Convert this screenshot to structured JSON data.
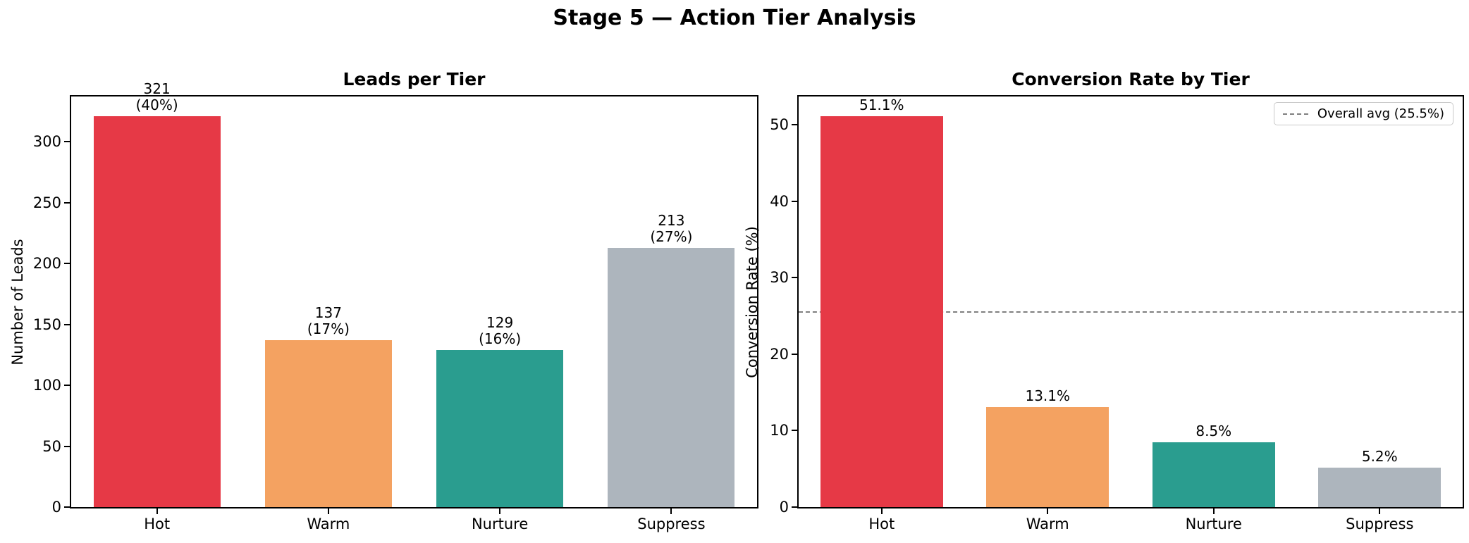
{
  "figure": {
    "title": "Stage 5 — Action Tier Analysis",
    "background": "#ffffff"
  },
  "chart_data": [
    {
      "type": "bar",
      "title": "Leads per Tier",
      "xlabel": "",
      "ylabel": "Number of Leads",
      "categories": [
        "Hot",
        "Warm",
        "Nurture",
        "Suppress"
      ],
      "values": [
        321,
        137,
        129,
        213
      ],
      "bar_labels": [
        [
          "321",
          "(40%)"
        ],
        [
          "137",
          "(17%)"
        ],
        [
          "129",
          "(16%)"
        ],
        [
          "213",
          "(27%)"
        ]
      ],
      "colors": [
        "#e63946",
        "#f4a261",
        "#2a9d8f",
        "#adb5bd"
      ],
      "yticks": [
        0,
        50,
        100,
        150,
        200,
        250,
        300
      ],
      "ylim": [
        0,
        337
      ],
      "grid": false,
      "legend": null
    },
    {
      "type": "bar",
      "title": "Conversion Rate by Tier",
      "xlabel": "",
      "ylabel": "Conversion Rate (%)",
      "categories": [
        "Hot",
        "Warm",
        "Nurture",
        "Suppress"
      ],
      "values": [
        51.1,
        13.1,
        8.5,
        5.2
      ],
      "bar_labels": [
        [
          "51.1%"
        ],
        [
          "13.1%"
        ],
        [
          "8.5%"
        ],
        [
          "5.2%"
        ]
      ],
      "colors": [
        "#e63946",
        "#f4a261",
        "#2a9d8f",
        "#adb5bd"
      ],
      "yticks": [
        0,
        10,
        20,
        30,
        40,
        50
      ],
      "ylim": [
        0,
        53.7
      ],
      "grid": false,
      "ref_line": {
        "value": 25.5,
        "label": "Overall avg (25.5%)",
        "color": "#7f7f7f",
        "style": "dashed",
        "legend_position": "upper right"
      }
    }
  ]
}
